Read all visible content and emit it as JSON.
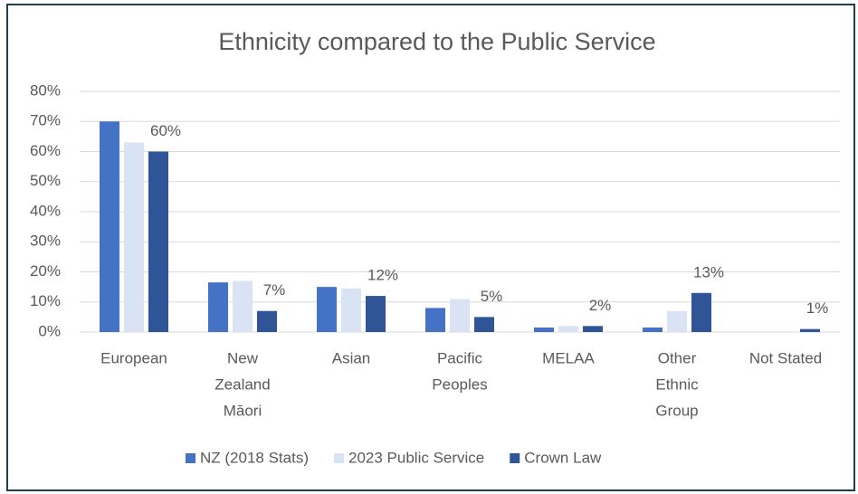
{
  "chart_data": {
    "type": "bar",
    "title": "Ethnicity compared to the Public Service",
    "categories": [
      [
        "European"
      ],
      [
        "New",
        "Zealand",
        "Māori"
      ],
      [
        "Asian"
      ],
      [
        "Pacific",
        "Peoples"
      ],
      [
        "MELAA"
      ],
      [
        "Other",
        "Ethnic",
        "Group"
      ],
      [
        "Not Stated"
      ]
    ],
    "series": [
      {
        "name": "NZ (2018 Stats)",
        "color": "#4472c4",
        "values": [
          70,
          16.5,
          15,
          8,
          1.5,
          1.5,
          null
        ]
      },
      {
        "name": "2023 Public Service",
        "color": "#dae3f3",
        "values": [
          63,
          17,
          14.5,
          11,
          2,
          7,
          null
        ]
      },
      {
        "name": "Crown Law",
        "color": "#2f5597",
        "values": [
          60,
          7,
          12,
          5,
          2,
          13,
          1
        ],
        "value_labels": [
          "60%",
          "7%",
          "12%",
          "5%",
          "2%",
          "13%",
          "1%"
        ]
      }
    ],
    "ylim": [
      0,
      80
    ],
    "yticks": [
      {
        "value": 0,
        "label": "0%"
      },
      {
        "value": 10,
        "label": "10%"
      },
      {
        "value": 20,
        "label": "20%"
      },
      {
        "value": 30,
        "label": "30%"
      },
      {
        "value": 40,
        "label": "40%"
      },
      {
        "value": 50,
        "label": "50%"
      },
      {
        "value": 60,
        "label": "60%"
      },
      {
        "value": 70,
        "label": "70%"
      },
      {
        "value": 80,
        "label": "80%"
      }
    ],
    "grid": true,
    "legend": "bottom"
  }
}
